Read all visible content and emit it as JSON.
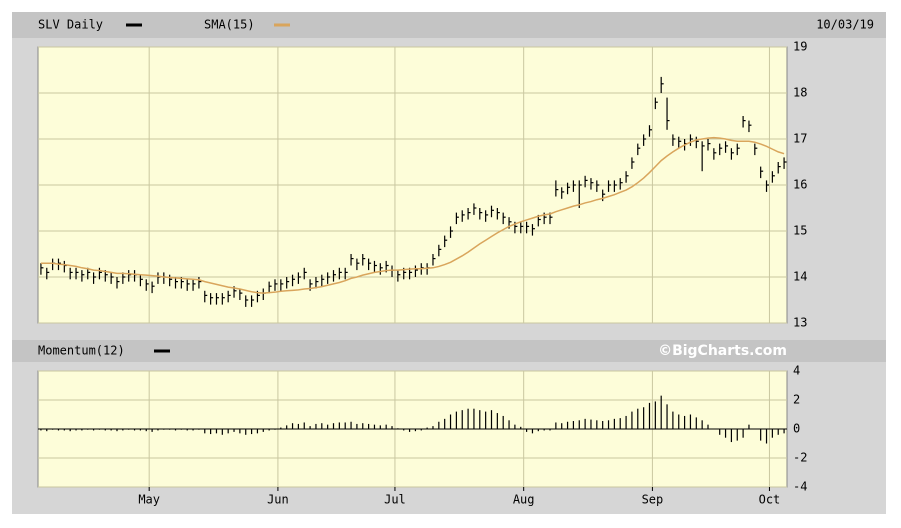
{
  "chart_data": [
    {
      "type": "ohlc",
      "date_label": "10/03/19",
      "ylim": [
        13,
        19
      ],
      "yticks": [
        13,
        14,
        15,
        16,
        17,
        18,
        19
      ],
      "grid": true,
      "series": [
        {
          "name": "SLV Daily",
          "type": "ohlc",
          "color": "#000000",
          "high": [
            14.3,
            14.2,
            14.4,
            14.4,
            14.35,
            14.2,
            14.2,
            14.15,
            14.2,
            14.1,
            14.2,
            14.15,
            14.1,
            14.0,
            14.1,
            14.15,
            14.15,
            14.05,
            13.95,
            13.9,
            14.1,
            14.1,
            14.05,
            14.0,
            14.0,
            13.95,
            13.95,
            14.0,
            13.7,
            13.65,
            13.65,
            13.65,
            13.7,
            13.8,
            13.75,
            13.6,
            13.6,
            13.7,
            13.75,
            13.9,
            13.95,
            13.95,
            14.0,
            14.05,
            14.1,
            14.2,
            13.95,
            14.0,
            14.05,
            14.1,
            14.15,
            14.2,
            14.2,
            14.5,
            14.4,
            14.5,
            14.4,
            14.35,
            14.3,
            14.35,
            14.25,
            14.15,
            14.2,
            14.2,
            14.25,
            14.3,
            14.3,
            14.5,
            14.7,
            14.9,
            15.1,
            15.4,
            15.45,
            15.5,
            15.6,
            15.5,
            15.45,
            15.55,
            15.5,
            15.4,
            15.3,
            15.2,
            15.2,
            15.2,
            15.15,
            15.35,
            15.4,
            15.4,
            16.1,
            15.95,
            16.05,
            16.1,
            16.1,
            16.2,
            16.15,
            16.1,
            15.9,
            16.1,
            16.1,
            16.15,
            16.3,
            16.6,
            16.9,
            17.1,
            17.3,
            17.9,
            18.35,
            17.9,
            17.1,
            17.05,
            17.0,
            17.1,
            17.05,
            16.95,
            17.0,
            16.8,
            16.9,
            16.95,
            16.8,
            16.9,
            17.5,
            17.4,
            16.9,
            16.4,
            16.1,
            16.3,
            16.5,
            16.6
          ],
          "low": [
            14.05,
            13.95,
            14.15,
            14.15,
            14.1,
            13.95,
            13.95,
            13.9,
            13.95,
            13.85,
            13.95,
            13.9,
            13.85,
            13.75,
            13.85,
            13.9,
            13.9,
            13.8,
            13.7,
            13.65,
            13.85,
            13.85,
            13.8,
            13.75,
            13.75,
            13.7,
            13.7,
            13.75,
            13.45,
            13.4,
            13.4,
            13.4,
            13.45,
            13.55,
            13.5,
            13.35,
            13.35,
            13.45,
            13.5,
            13.65,
            13.7,
            13.7,
            13.75,
            13.8,
            13.85,
            13.95,
            13.7,
            13.75,
            13.8,
            13.85,
            13.9,
            13.95,
            13.95,
            14.25,
            14.15,
            14.25,
            14.15,
            14.1,
            14.05,
            14.1,
            14.0,
            13.9,
            13.95,
            13.95,
            14.0,
            14.05,
            14.05,
            14.25,
            14.45,
            14.65,
            14.85,
            15.15,
            15.2,
            15.25,
            15.35,
            15.25,
            15.2,
            15.3,
            15.25,
            15.15,
            15.05,
            14.95,
            14.95,
            14.95,
            14.9,
            15.1,
            15.15,
            15.15,
            15.75,
            15.7,
            15.8,
            15.85,
            15.5,
            15.95,
            15.9,
            15.85,
            15.65,
            15.85,
            15.85,
            15.9,
            16.05,
            16.35,
            16.65,
            16.85,
            17.05,
            17.65,
            18.0,
            17.2,
            16.85,
            16.8,
            16.75,
            16.85,
            16.8,
            16.3,
            16.75,
            16.55,
            16.65,
            16.7,
            16.55,
            16.65,
            17.25,
            17.15,
            16.65,
            16.15,
            15.85,
            16.05,
            16.25,
            16.35
          ],
          "close": [
            14.2,
            14.1,
            14.3,
            14.3,
            14.25,
            14.1,
            14.1,
            14.05,
            14.1,
            14.0,
            14.1,
            14.05,
            14.0,
            13.9,
            14.0,
            14.05,
            14.05,
            13.95,
            13.85,
            13.8,
            14.0,
            14.0,
            13.95,
            13.9,
            13.9,
            13.85,
            13.85,
            13.9,
            13.6,
            13.55,
            13.55,
            13.55,
            13.6,
            13.7,
            13.65,
            13.5,
            13.5,
            13.6,
            13.65,
            13.8,
            13.85,
            13.85,
            13.9,
            13.95,
            14.0,
            14.1,
            13.85,
            13.9,
            13.95,
            14.0,
            14.05,
            14.1,
            14.1,
            14.4,
            14.3,
            14.4,
            14.3,
            14.25,
            14.2,
            14.25,
            14.15,
            14.05,
            14.1,
            14.1,
            14.15,
            14.2,
            14.2,
            14.4,
            14.6,
            14.8,
            15.0,
            15.3,
            15.35,
            15.4,
            15.5,
            15.4,
            15.35,
            15.45,
            15.4,
            15.3,
            15.2,
            15.1,
            15.1,
            15.1,
            15.05,
            15.25,
            15.3,
            15.3,
            15.9,
            15.85,
            15.95,
            16.0,
            16.0,
            16.1,
            16.05,
            16.0,
            15.8,
            16.0,
            16.0,
            16.05,
            16.2,
            16.5,
            16.8,
            17.0,
            17.2,
            17.8,
            18.2,
            17.4,
            17.0,
            16.95,
            16.9,
            17.0,
            16.95,
            16.85,
            16.9,
            16.7,
            16.8,
            16.85,
            16.7,
            16.8,
            17.4,
            17.3,
            16.8,
            16.3,
            16.0,
            16.2,
            16.4,
            16.5
          ]
        },
        {
          "name": "SMA(15)",
          "type": "line",
          "color": "#d9a55c",
          "values": [
            14.3,
            14.3,
            14.3,
            14.28,
            14.27,
            14.25,
            14.23,
            14.2,
            14.18,
            14.15,
            14.14,
            14.12,
            14.1,
            14.08,
            14.08,
            14.07,
            14.06,
            14.05,
            14.04,
            14.03,
            14.02,
            14.0,
            13.99,
            13.98,
            13.97,
            13.96,
            13.95,
            13.94,
            13.9,
            13.87,
            13.84,
            13.81,
            13.78,
            13.76,
            13.74,
            13.71,
            13.68,
            13.66,
            13.65,
            13.66,
            13.67,
            13.69,
            13.7,
            13.71,
            13.72,
            13.74,
            13.75,
            13.77,
            13.79,
            13.82,
            13.85,
            13.88,
            13.92,
            13.97,
            14.0,
            14.04,
            14.07,
            14.1,
            14.12,
            14.14,
            14.15,
            14.15,
            14.16,
            14.17,
            14.18,
            14.18,
            14.19,
            14.2,
            14.23,
            14.27,
            14.32,
            14.39,
            14.46,
            14.54,
            14.63,
            14.72,
            14.8,
            14.88,
            14.96,
            15.03,
            15.1,
            15.15,
            15.2,
            15.24,
            15.28,
            15.32,
            15.35,
            15.37,
            15.42,
            15.46,
            15.5,
            15.54,
            15.57,
            15.61,
            15.64,
            15.68,
            15.71,
            15.75,
            15.79,
            15.84,
            15.89,
            15.96,
            16.05,
            16.15,
            16.27,
            16.4,
            16.53,
            16.63,
            16.72,
            16.8,
            16.87,
            16.93,
            16.98,
            17.0,
            17.02,
            17.03,
            17.02,
            17.0,
            16.97,
            16.95,
            16.95,
            16.95,
            16.93,
            16.89,
            16.84,
            16.78,
            16.72,
            16.68
          ]
        }
      ]
    },
    {
      "type": "bar",
      "source": "©BigCharts.com",
      "ylim": [
        -4,
        4
      ],
      "yticks": [
        -4,
        -2,
        0,
        2,
        4
      ],
      "grid": true,
      "categories": [
        null,
        null,
        null,
        null,
        null,
        null,
        null,
        null,
        null,
        null,
        null,
        null,
        null,
        null,
        null,
        null,
        null,
        null,
        null,
        "May",
        null,
        null,
        null,
        null,
        null,
        null,
        null,
        null,
        null,
        null,
        null,
        null,
        null,
        null,
        null,
        null,
        null,
        null,
        null,
        null,
        null,
        "Jun",
        null,
        null,
        null,
        null,
        null,
        null,
        null,
        null,
        null,
        null,
        null,
        null,
        null,
        null,
        null,
        null,
        null,
        null,
        null,
        "Jul",
        null,
        null,
        null,
        null,
        null,
        null,
        null,
        null,
        null,
        null,
        null,
        null,
        null,
        null,
        null,
        null,
        null,
        null,
        null,
        null,
        null,
        "Aug",
        null,
        null,
        null,
        null,
        null,
        null,
        null,
        null,
        null,
        null,
        null,
        null,
        null,
        null,
        null,
        null,
        null,
        null,
        null,
        null,
        null,
        "Sep",
        null,
        null,
        null,
        null,
        null,
        null,
        null,
        null,
        null,
        null,
        null,
        null,
        null,
        null,
        null,
        null,
        null,
        null,
        null,
        "Oct",
        null,
        null
      ],
      "series": [
        {
          "name": "Momentum(12)",
          "color": "#000000",
          "values": [
            -0.1,
            -0.15,
            -0.05,
            -0.1,
            -0.1,
            -0.15,
            -0.1,
            -0.1,
            -0.05,
            -0.1,
            -0.05,
            -0.1,
            -0.1,
            -0.15,
            -0.1,
            -0.05,
            -0.1,
            -0.1,
            -0.15,
            -0.2,
            -0.1,
            -0.05,
            -0.05,
            -0.1,
            -0.05,
            -0.1,
            -0.1,
            -0.05,
            -0.3,
            -0.35,
            -0.3,
            -0.4,
            -0.3,
            -0.2,
            -0.3,
            -0.4,
            -0.35,
            -0.3,
            -0.2,
            -0.1,
            -0.05,
            0.1,
            0.25,
            0.4,
            0.35,
            0.45,
            0.2,
            0.35,
            0.4,
            0.3,
            0.4,
            0.45,
            0.45,
            0.5,
            0.35,
            0.4,
            0.35,
            0.3,
            0.25,
            0.3,
            0.2,
            0.05,
            -0.1,
            -0.2,
            -0.15,
            -0.1,
            0.1,
            0.2,
            0.5,
            0.7,
            1.0,
            1.2,
            1.3,
            1.4,
            1.4,
            1.3,
            1.2,
            1.3,
            1.1,
            0.9,
            0.6,
            0.3,
            0.15,
            -0.2,
            -0.3,
            -0.15,
            -0.1,
            -0.1,
            0.45,
            0.4,
            0.5,
            0.55,
            0.6,
            0.7,
            0.65,
            0.6,
            0.55,
            0.6,
            0.7,
            0.75,
            0.9,
            1.2,
            1.4,
            1.5,
            1.8,
            1.9,
            2.3,
            1.7,
            1.2,
            1.0,
            0.9,
            1.0,
            0.8,
            0.6,
            0.3,
            0.0,
            -0.4,
            -0.6,
            -0.9,
            -0.8,
            -0.6,
            0.3,
            0.0,
            -0.8,
            -1.0,
            -0.6,
            -0.4,
            -0.3
          ]
        }
      ]
    }
  ]
}
